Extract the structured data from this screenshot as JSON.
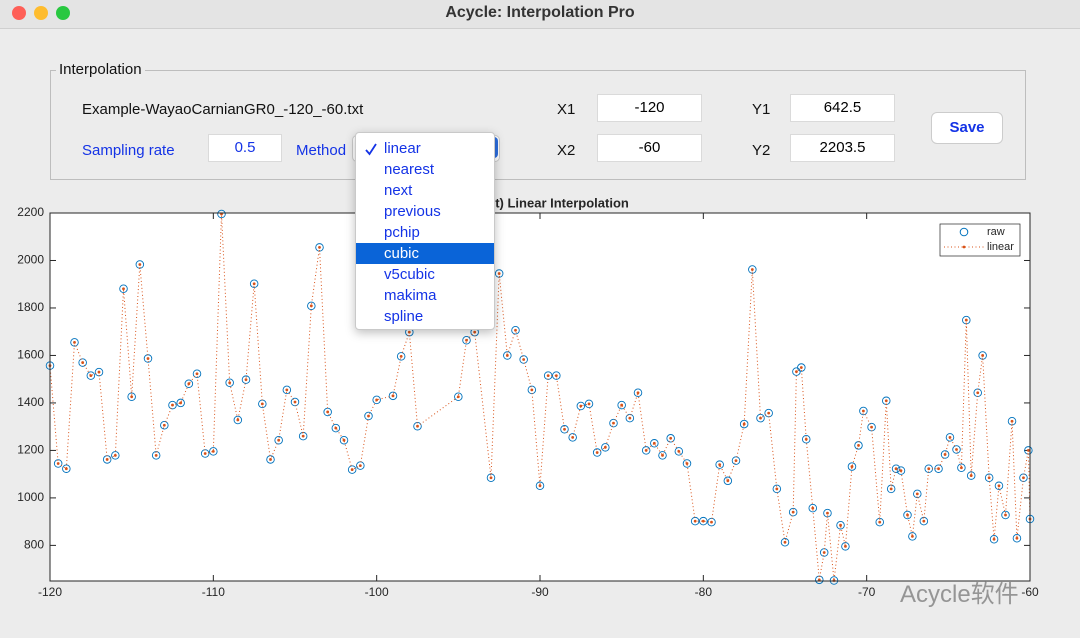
{
  "window": {
    "title": "Acycle: Interpolation Pro"
  },
  "panel": {
    "title": "Interpolation",
    "filename": "Example-WayaoCarnianGR0_-120_-60.txt",
    "sampling_rate_label": "Sampling rate",
    "sampling_rate": "0.5",
    "method_label": "Method",
    "x1_label": "X1",
    "x1": "-120",
    "x2_label": "X2",
    "x2": "-60",
    "y1_label": "Y1",
    "y1": "642.5",
    "y2_label": "Y2",
    "y2": "2203.5",
    "save": "Save"
  },
  "method_menu": {
    "items": [
      "linear",
      "nearest",
      "next",
      "previous",
      "pchip",
      "cubic",
      "v5cubic",
      "makima",
      "spline"
    ],
    "selected": 0,
    "highlighted": 5
  },
  "chart_data": {
    "type": "line",
    "title": "(Default) Linear Interpolation",
    "x": [
      -120,
      -119.5,
      -119,
      -118.5,
      -118,
      -117.5,
      -117,
      -116.5,
      -116,
      -115.5,
      -115,
      -114.5,
      -114,
      -113.5,
      -113,
      -112.5,
      -112,
      -111.5,
      -111,
      -110.5,
      -110,
      -109.5,
      -109,
      -108.5,
      -108,
      -107.5,
      -107,
      -106.5,
      -106,
      -105.5,
      -105,
      -104.5,
      -104,
      -103.5,
      -103,
      -102.5,
      -102,
      -101.5,
      -101,
      -100.5,
      -100,
      -99,
      -98.5,
      -98,
      -97.5,
      -95,
      -94.5,
      -94,
      -93,
      -92.5,
      -92,
      -91.5,
      -91,
      -90.5,
      -90,
      -89.5,
      -89,
      -88.5,
      -88,
      -87.5,
      -87,
      -86.5,
      -86,
      -85.5,
      -85,
      -84.5,
      -84,
      -83.5,
      -83,
      -82.5,
      -82,
      -81.5,
      -81,
      -80.5,
      -80,
      -79.5,
      -79,
      -78.5,
      -78,
      -77.5,
      -77,
      -76.5,
      -76,
      -75.5,
      -75,
      -74.5,
      -74.3,
      -74,
      -73.7,
      -73.3,
      -72.9,
      -72.6,
      -72.4,
      -72,
      -71.6,
      -71.3,
      -70.9,
      -70.5,
      -70.2,
      -69.7,
      -69.2,
      -68.8,
      -68.5,
      -68.2,
      -67.9,
      -67.5,
      -67.2,
      -66.9,
      -66.5,
      -66.2,
      -65.6,
      -65.2,
      -64.9,
      -64.5,
      -64.2,
      -63.9,
      -63.6,
      -63.2,
      -62.9,
      -62.5,
      -62.2,
      -61.9,
      -61.5,
      -61.1,
      -60.8,
      -60.4,
      -60.1,
      -60
    ],
    "series": [
      {
        "name": "raw",
        "color": "#0072bd",
        "marker": "circle",
        "line": false,
        "values": [
          1557,
          1145,
          1123,
          1655,
          1570,
          1515,
          1530,
          1162,
          1179,
          1881,
          1426,
          1983,
          1587,
          1179,
          1306,
          1391,
          1400,
          1481,
          1523,
          1187,
          1196,
          2196,
          1485,
          1328,
          1498,
          1902,
          1396,
          1162,
          1243,
          1455,
          1404,
          1260,
          1809,
          2055,
          1362,
          1294,
          1243,
          1119,
          1136,
          1345,
          1413,
          1430,
          1596,
          1698,
          1302,
          1426,
          1664,
          1698,
          1085,
          1945,
          1600,
          1706,
          1583,
          1455,
          1051,
          1515,
          1515,
          1289,
          1255,
          1387,
          1396,
          1191,
          1213,
          1315,
          1391,
          1336,
          1443,
          1200,
          1230,
          1179,
          1251,
          1196,
          1145,
          902,
          902,
          898,
          1140,
          1072,
          1157,
          1311,
          1962,
          1336,
          1357,
          1038,
          813,
          940,
          1532,
          1549,
          1247,
          957,
          655,
          770,
          936,
          652,
          885,
          796,
          1132,
          1221,
          1366,
          1298,
          898,
          1409,
          1038,
          1123,
          1115,
          928,
          838,
          1017,
          902,
          1123,
          1123,
          1183,
          1255,
          1204,
          1127,
          1749,
          1094,
          1443,
          1600,
          1085,
          826,
          1051,
          928,
          1323,
          830,
          1085,
          1200,
          911
        ]
      },
      {
        "name": "linear",
        "color": "#d95319",
        "marker": "dot",
        "line": true,
        "values": [
          1557,
          1145,
          1123,
          1655,
          1570,
          1515,
          1530,
          1162,
          1179,
          1881,
          1426,
          1983,
          1587,
          1179,
          1306,
          1391,
          1400,
          1481,
          1523,
          1187,
          1196,
          2196,
          1485,
          1328,
          1498,
          1902,
          1396,
          1162,
          1243,
          1455,
          1404,
          1260,
          1809,
          2055,
          1362,
          1294,
          1243,
          1119,
          1136,
          1345,
          1413,
          1430,
          1596,
          1698,
          1302,
          1426,
          1664,
          1698,
          1085,
          1945,
          1600,
          1706,
          1583,
          1455,
          1051,
          1515,
          1515,
          1289,
          1255,
          1387,
          1396,
          1191,
          1213,
          1315,
          1391,
          1336,
          1443,
          1200,
          1230,
          1179,
          1251,
          1196,
          1145,
          902,
          902,
          898,
          1140,
          1072,
          1157,
          1311,
          1962,
          1336,
          1357,
          1038,
          813,
          940,
          1532,
          1549,
          1247,
          957,
          655,
          770,
          936,
          652,
          885,
          796,
          1132,
          1221,
          1366,
          1298,
          898,
          1409,
          1038,
          1123,
          1115,
          928,
          838,
          1017,
          902,
          1123,
          1123,
          1183,
          1255,
          1204,
          1127,
          1749,
          1094,
          1443,
          1600,
          1085,
          826,
          1051,
          928,
          1323,
          830,
          1085,
          1200,
          911
        ]
      }
    ],
    "xlim": [
      -120,
      -60
    ],
    "ylim": [
      650,
      2200
    ],
    "xticks": [
      -120,
      -110,
      -100,
      -90,
      -80,
      -70,
      -60
    ],
    "yticks": [
      800,
      1000,
      1200,
      1400,
      1600,
      1800,
      2000,
      2200
    ],
    "legend": "top-right"
  },
  "watermark": "Acycle软件"
}
